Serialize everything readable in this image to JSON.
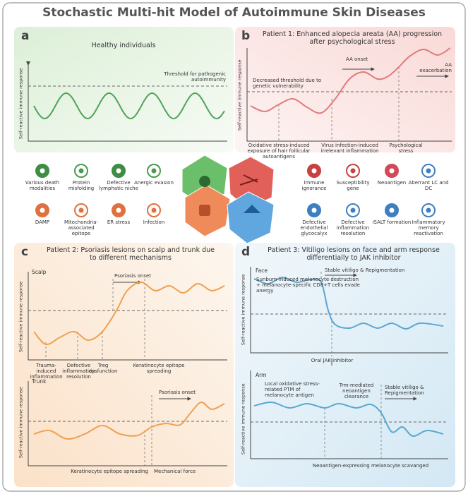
{
  "title": "Stochastic Multi-hit Model of Autoimmune Skin Diseases",
  "panel_a": {
    "label": "a",
    "title": "Healthy individuals",
    "y_axis_label": "Self-reactive immune response",
    "threshold": "Threshold for pathogenic autoimmunity"
  },
  "panel_b": {
    "label": "b",
    "title": "Patient 1: Enhanced alopecia areata (AA) progression after psychological stress",
    "y_axis_label": "Self-reactive immune response",
    "onset": "AA onset",
    "exacerbation": "AA exacerbation",
    "threshold_note": "Decreased threshold due to genetic vulnerability",
    "events": [
      "Oxidative stress-induced exposure of hair follicular autoantigens",
      "Virus infection-induced irrelevant inflammation",
      "Psychological stress"
    ]
  },
  "hits": {
    "left": [
      "Various death modalities",
      "Protein misfolding",
      "Defective lymphatic niche",
      "Anergic evasion",
      "DAMP",
      "Mitochondria-associated epitope",
      "ER stress",
      "Infection"
    ],
    "right": [
      "Immune ignorance",
      "Susceptibility gene",
      "Neoantigen",
      "Aberrant LC and DC",
      "Defective endothelial glycocalyx",
      "Defective inflammation resolution",
      "iSALT formation",
      "Inflammatory memory reactivation"
    ]
  },
  "panel_c": {
    "label": "c",
    "title": "Patient 2: Psoriasis lesions on scalp and trunk due to different mechanisms",
    "scalp": {
      "site": "Scalp",
      "y_axis_label": "Self-reactive immune response",
      "onset": "Psoriasis onset",
      "events": [
        "Trauma-induced inflammation",
        "Defective inflammation resolution",
        "Treg dysfunction",
        "Keratinocyte epitope spreading"
      ]
    },
    "trunk": {
      "site": "Trunk",
      "y_axis_label": "Self-reactive immune response",
      "onset": "Psoriasis onset",
      "events": [
        "Keratinocyte epitope spreading",
        "Mechanical force"
      ]
    }
  },
  "panel_d": {
    "label": "d",
    "title": "Patient 3: Vitiligo lesions on face and arm response differentially to JAK inhibitor",
    "face": {
      "site": "Face",
      "y_axis_label": "Self-reactive immune response",
      "outcome": "Stable vitiligo & Repigmentation",
      "event": "Sunburn-induced melanocyte destruction + melanocyte-specific CD8+T cells evade anergy",
      "treatment": "Oral JAK inhibitor"
    },
    "arm": {
      "site": "Arm",
      "y_axis_label": "Self-reactive immune response",
      "event": "Local oxidative stress-related PTM of melanocyte antigen",
      "clearance": "Trm-mediated neoantigen clearance",
      "outcome": "Stable vitiligo & Repigmentation",
      "footnote": "Neoantigen-expressing melanocyte scavanged"
    }
  }
}
